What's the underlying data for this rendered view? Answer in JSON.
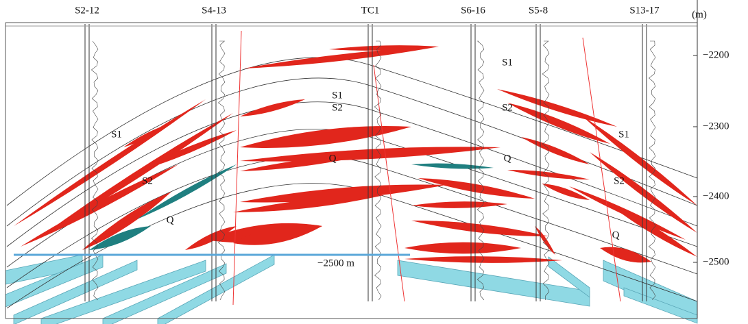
{
  "wells": [
    "S2-12",
    "S4-13",
    "TC1",
    "S6-16",
    "S5-8",
    "S13-17"
  ],
  "depth_axis": {
    "unit": "(m)",
    "ticks": [
      "−2200",
      "−2300",
      "−2400",
      "−2500"
    ]
  },
  "horizon_labels": [
    "S1",
    "S1",
    "S1",
    "S1",
    "S2",
    "S2",
    "S2",
    "S2",
    "Q",
    "Q",
    "Q",
    "Q"
  ],
  "contact_label": "−2500 m"
}
